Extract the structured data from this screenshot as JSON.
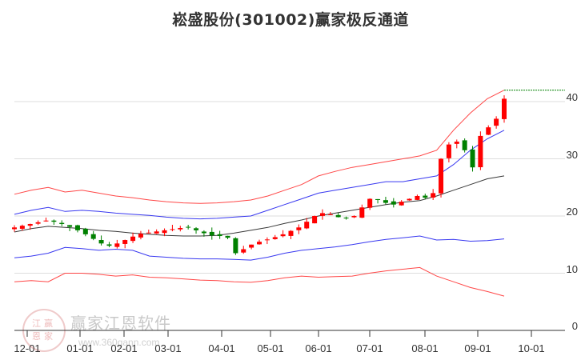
{
  "title": "崧盛股份(301002)赢家极反通道",
  "watermark": {
    "name": "赢家江恩软件",
    "url": "www.360gann.com",
    "logo_chars": [
      "江",
      "赢",
      "恩",
      "家"
    ]
  },
  "colors": {
    "up": "#ff0000",
    "down": "#008000",
    "outer_band": "#ff3333",
    "inner_band": "#2222ee",
    "middle_line": "#222222",
    "last_price_line": "#008000",
    "grid": "#dddddd"
  },
  "chart_data": {
    "type": "candlestick",
    "title": "崧盛股份(301002)赢家极反通道",
    "xlabel": "",
    "ylabel": "",
    "ylim": [
      0,
      40
    ],
    "y_ticks": [
      0,
      10,
      20,
      30,
      40
    ],
    "x_ticks": [
      "12-01",
      "01-01",
      "02-01",
      "03-01",
      "04-01",
      "05-01",
      "06-01",
      "07-01",
      "08-01",
      "09-01",
      "10-01"
    ],
    "grid": true,
    "legend": null,
    "close_series_approx": [
      18.0,
      18.3,
      18.6,
      18.9,
      19.2,
      19.0,
      18.6,
      18.1,
      17.5,
      16.8,
      16.0,
      15.2,
      14.8,
      15.2,
      15.8,
      16.4,
      16.9,
      17.1,
      17.3,
      17.5,
      17.7,
      17.9,
      18.0,
      17.5,
      17.0,
      16.6,
      16.5,
      16.2,
      13.5,
      14.2,
      15.0,
      15.5,
      15.9,
      16.3,
      16.8,
      17.4,
      18.0,
      19.0,
      20.0,
      20.5,
      20.3,
      19.8,
      19.6,
      20.0,
      21.5,
      23.0,
      22.8,
      22.3,
      22.0,
      22.5,
      23.0,
      23.5,
      23.2,
      24.0,
      30.0,
      32.5,
      33.0,
      31.5,
      28.5,
      34.0,
      35.5,
      37.0,
      40.5
    ],
    "series": [
      {
        "name": "outer_upper",
        "values": [
          23.8,
          24.5,
          25.0,
          24.2,
          24.5,
          24.0,
          23.5,
          23.2,
          22.8,
          22.5,
          22.3,
          22.2,
          22.3,
          22.5,
          22.8,
          23.5,
          24.5,
          25.5,
          27.0,
          27.8,
          28.5,
          29.0,
          29.5,
          30.0,
          30.5,
          31.5,
          35.0,
          38.0,
          40.5,
          42.0
        ]
      },
      {
        "name": "inner_upper",
        "values": [
          20.3,
          21.0,
          21.5,
          20.8,
          21.0,
          20.8,
          20.5,
          20.3,
          20.1,
          19.8,
          19.6,
          19.5,
          19.6,
          19.8,
          20.0,
          21.0,
          22.0,
          23.0,
          24.0,
          24.5,
          25.0,
          25.5,
          26.0,
          26.0,
          26.5,
          27.0,
          29.0,
          31.5,
          33.5,
          35.0
        ]
      },
      {
        "name": "middle",
        "values": [
          17.2,
          17.8,
          18.2,
          18.0,
          17.8,
          17.5,
          17.3,
          17.0,
          16.8,
          16.6,
          16.5,
          16.5,
          16.6,
          17.0,
          17.5,
          18.0,
          18.7,
          19.3,
          20.0,
          20.5,
          21.0,
          21.5,
          22.0,
          22.4,
          22.7,
          23.5,
          24.5,
          25.5,
          26.5,
          27.0
        ]
      },
      {
        "name": "inner_lower",
        "values": [
          12.7,
          13.0,
          13.5,
          14.5,
          14.3,
          14.0,
          14.2,
          14.0,
          13.0,
          12.8,
          12.6,
          12.5,
          12.5,
          12.4,
          12.3,
          12.8,
          13.5,
          14.0,
          14.3,
          14.6,
          15.0,
          15.5,
          15.9,
          16.2,
          16.5,
          15.8,
          15.9,
          15.6,
          15.7,
          16.0
        ]
      },
      {
        "name": "outer_lower",
        "values": [
          8.5,
          8.7,
          8.5,
          10.0,
          10.0,
          9.8,
          9.5,
          9.7,
          9.3,
          9.2,
          9.0,
          8.8,
          8.7,
          8.5,
          8.4,
          8.7,
          9.2,
          9.5,
          9.3,
          9.4,
          9.5,
          10.0,
          10.4,
          10.7,
          11.0,
          9.5,
          8.5,
          7.5,
          6.8,
          6.0
        ]
      }
    ],
    "last_price": 40.5
  }
}
